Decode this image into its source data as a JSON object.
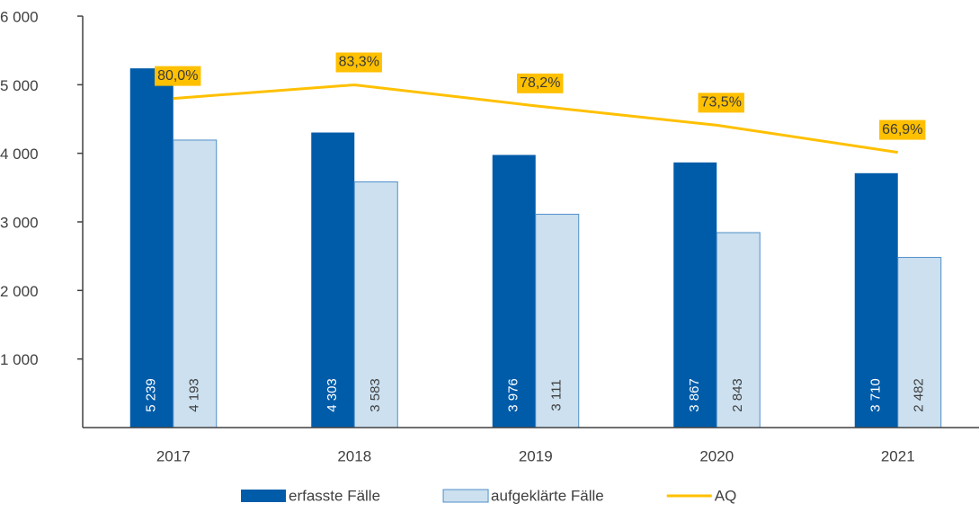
{
  "chart_data": {
    "type": "bar",
    "categories": [
      "2017",
      "2018",
      "2019",
      "2020",
      "2021"
    ],
    "series": [
      {
        "name": "erfasste Fälle",
        "color": "#005ca9",
        "values": [
          5239,
          4303,
          3976,
          3867,
          3710
        ],
        "value_labels": [
          "5 239",
          "4 303",
          "3 976",
          "3 867",
          "3 710"
        ]
      },
      {
        "name": "aufgeklärte Fälle",
        "color": "#cce0ef",
        "values": [
          4193,
          3583,
          3111,
          2843,
          2482
        ],
        "value_labels": [
          "4 193",
          "3 583",
          "3 111",
          "2 843",
          "2 482"
        ]
      },
      {
        "name": "AQ",
        "type": "line",
        "axis": "y2",
        "color": "#ffc000",
        "values": [
          80.0,
          83.3,
          78.2,
          73.5,
          66.9
        ],
        "value_labels": [
          "80,0%",
          "83,3%",
          "78,2%",
          "73,5%",
          "66,9%"
        ]
      }
    ],
    "ylim": [
      0,
      6000
    ],
    "yticks": [
      {
        "value": 1000,
        "label": "1 000"
      },
      {
        "value": 2000,
        "label": "2 000"
      },
      {
        "value": 3000,
        "label": "3 000"
      },
      {
        "value": 4000,
        "label": "4 000"
      },
      {
        "value": 5000,
        "label": "5 000"
      },
      {
        "value": 6000,
        "label": "6 000"
      }
    ],
    "y2lim": [
      0,
      100
    ],
    "legend": "bottom"
  }
}
